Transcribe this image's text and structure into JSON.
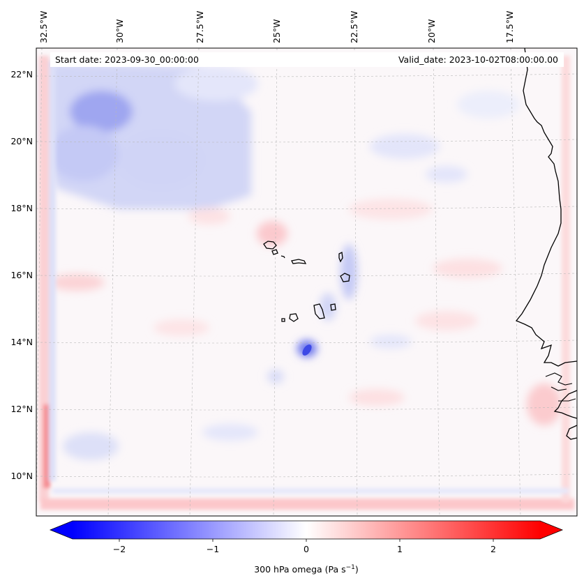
{
  "header": {
    "start_date": "Start date: 2023-09-30_00:00:00",
    "valid_date": "Valid_date: 2023-10-02T08:00:00.00"
  },
  "longitude_labels": [
    "32.5°W",
    "30°W",
    "27.5°W",
    "25°W",
    "22.5°W",
    "20°W",
    "17.5°W"
  ],
  "latitude_labels": [
    "22°N",
    "20°N",
    "18°N",
    "16°N",
    "14°N",
    "12°N",
    "10°N"
  ],
  "colorbar": {
    "title": "300 hPa omega (Pa s",
    "title_superscript": "−1",
    "title_suffix": ")",
    "tick_labels": [
      "−2",
      "−1",
      "0",
      "1",
      "2"
    ],
    "range": [
      -2.75,
      2.75
    ],
    "low_color": "#0000ff",
    "mid_color": "#ffffff",
    "high_color": "#ff0000"
  },
  "map": {
    "field": "300 hPa omega",
    "extent_lon": [
      -33,
      -16.5
    ],
    "extent_lat": [
      8.8,
      22.8
    ],
    "features": [
      "west-africa-coastline",
      "cape-verde-islands"
    ]
  }
}
